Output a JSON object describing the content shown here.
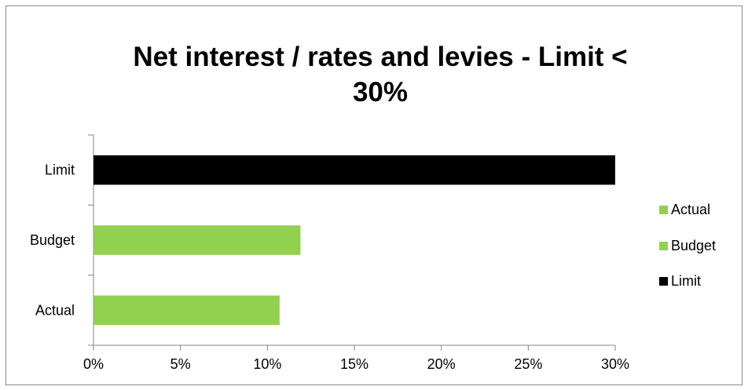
{
  "chart_data": {
    "type": "bar",
    "orientation": "horizontal",
    "title_lines": [
      "Net interest / rates and levies  - Limit <",
      "30%"
    ],
    "categories": [
      "Actual",
      "Budget",
      "Limit"
    ],
    "values": [
      0.107,
      0.119,
      0.3
    ],
    "bar_colors": [
      "#92d050",
      "#92d050",
      "#000000"
    ],
    "xlim": [
      0,
      0.3
    ],
    "x_ticks": [
      0,
      0.05,
      0.1,
      0.15,
      0.2,
      0.25,
      0.3
    ],
    "x_tick_labels": [
      "0%",
      "5%",
      "10%",
      "15%",
      "20%",
      "25%",
      "30%"
    ],
    "grid": false,
    "legend_position": "right",
    "legend": [
      {
        "label": "Actual",
        "color": "#92d050"
      },
      {
        "label": "Budget",
        "color": "#92d050"
      },
      {
        "label": "Limit",
        "color": "#000000"
      }
    ]
  }
}
